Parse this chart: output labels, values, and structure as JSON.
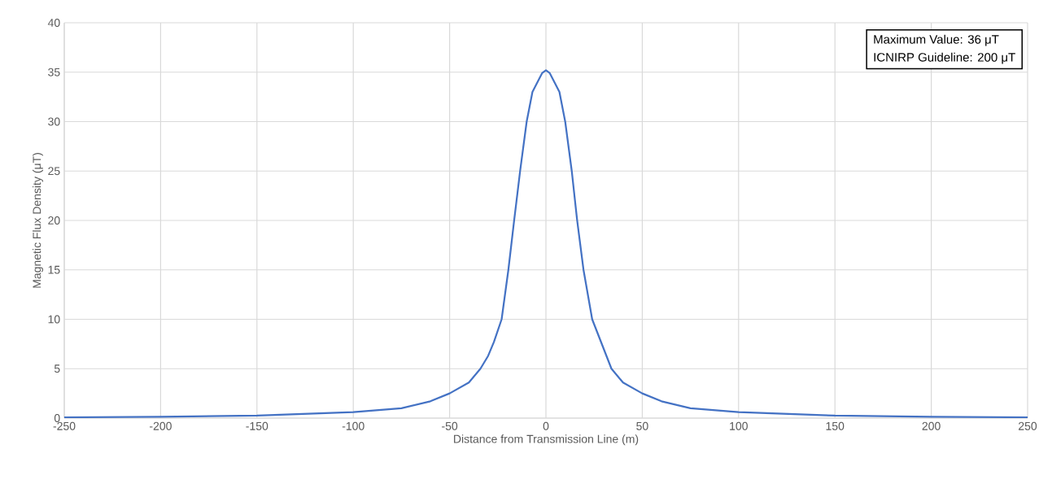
{
  "chart_data": {
    "type": "line",
    "xlabel": "Distance from Transmission Line (m)",
    "ylabel": "Magnetic Flux Density (μT)",
    "annotations": [
      "Maximum Value: 36 μT",
      "ICNIRP Guideline: 200 μT"
    ],
    "x": [
      -250,
      -200,
      -150,
      -100,
      -75,
      -60,
      -50,
      -40,
      -34,
      -30,
      -27,
      -23,
      -19.5,
      -16.5,
      -13.4,
      -10,
      -7,
      -4.4,
      -2,
      0,
      2,
      4.4,
      7,
      10,
      13.4,
      16.2,
      19.5,
      24,
      34,
      40,
      50,
      60,
      75,
      100,
      150,
      200,
      250
    ],
    "series": [
      {
        "color": "#4472c4",
        "values": [
          0.08,
          0.13,
          0.25,
          0.6,
          1.0,
          1.7,
          2.5,
          3.6,
          5,
          6.3,
          7.7,
          10,
          15,
          20,
          25,
          30,
          33,
          34,
          34.9,
          35.2,
          34.9,
          34,
          33,
          30,
          25,
          20,
          15,
          10,
          5,
          3.6,
          2.5,
          1.7,
          1.0,
          0.6,
          0.25,
          0.13,
          0.08
        ]
      }
    ],
    "xlim": [
      -250,
      250
    ],
    "ylim": [
      0,
      40
    ],
    "xticks": [
      -250,
      -200,
      -150,
      -100,
      -50,
      0,
      50,
      100,
      150,
      200,
      250
    ],
    "yticks": [
      0,
      5,
      10,
      15,
      20,
      25,
      30,
      35,
      40
    ],
    "grid": true,
    "marker": "none",
    "line_style": "solid"
  }
}
